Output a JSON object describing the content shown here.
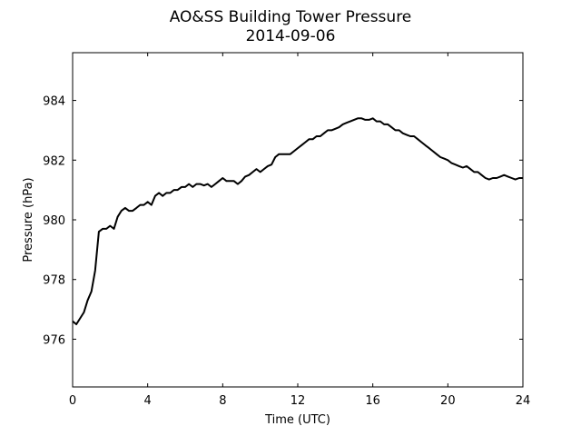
{
  "chart_data": {
    "type": "line",
    "title": "AO&SS Building Tower Pressure",
    "subtitle": "2014-09-06",
    "xlabel": "Time (UTC)",
    "ylabel": "Pressure (hPa)",
    "xlim": [
      0,
      24
    ],
    "ylim": [
      974.4,
      985.6
    ],
    "xticks": [
      0,
      4,
      8,
      12,
      16,
      20,
      24
    ],
    "yticks": [
      976,
      978,
      980,
      982,
      984
    ],
    "grid": false,
    "legend": "none",
    "line_color": "#000000",
    "series": [
      {
        "x": [
          0.0,
          0.2,
          0.4,
          0.6,
          0.8,
          1.0,
          1.2,
          1.4,
          1.6,
          1.8,
          2.0,
          2.2,
          2.4,
          2.6,
          2.8,
          3.0,
          3.2,
          3.4,
          3.6,
          3.8,
          4.0,
          4.2,
          4.4,
          4.6,
          4.8,
          5.0,
          5.2,
          5.4,
          5.6,
          5.8,
          6.0,
          6.2,
          6.4,
          6.6,
          6.8,
          7.0,
          7.2,
          7.4,
          7.6,
          7.8,
          8.0,
          8.2,
          8.4,
          8.6,
          8.8,
          9.0,
          9.2,
          9.4,
          9.6,
          9.8,
          10.0,
          10.2,
          10.4,
          10.6,
          10.8,
          11.0,
          11.2,
          11.4,
          11.6,
          11.8,
          12.0,
          12.2,
          12.4,
          12.6,
          12.8,
          13.0,
          13.2,
          13.4,
          13.6,
          13.8,
          14.0,
          14.2,
          14.4,
          14.6,
          14.8,
          15.0,
          15.2,
          15.4,
          15.6,
          15.8,
          16.0,
          16.2,
          16.4,
          16.6,
          16.8,
          17.0,
          17.2,
          17.4,
          17.6,
          17.8,
          18.0,
          18.2,
          18.4,
          18.6,
          18.8,
          19.0,
          19.2,
          19.4,
          19.6,
          19.8,
          20.0,
          20.2,
          20.4,
          20.6,
          20.8,
          21.0,
          21.2,
          21.4,
          21.6,
          21.8,
          22.0,
          22.2,
          22.4,
          22.6,
          22.8,
          23.0,
          23.2,
          23.4,
          23.6,
          23.8,
          24.0
        ],
        "values": [
          976.6,
          976.5,
          976.7,
          976.9,
          977.3,
          977.6,
          978.3,
          979.6,
          979.7,
          979.7,
          979.8,
          979.7,
          980.1,
          980.3,
          980.4,
          980.3,
          980.3,
          980.4,
          980.5,
          980.5,
          980.6,
          980.5,
          980.8,
          980.9,
          980.8,
          980.9,
          980.9,
          981.0,
          981.0,
          981.1,
          981.1,
          981.2,
          981.1,
          981.2,
          981.2,
          981.15,
          981.2,
          981.1,
          981.2,
          981.3,
          981.4,
          981.3,
          981.3,
          981.3,
          981.2,
          981.3,
          981.45,
          981.5,
          981.6,
          981.7,
          981.6,
          981.7,
          981.8,
          981.85,
          982.1,
          982.2,
          982.2,
          982.2,
          982.2,
          982.3,
          982.4,
          982.5,
          982.6,
          982.7,
          982.7,
          982.8,
          982.8,
          982.9,
          983.0,
          983.0,
          983.05,
          983.1,
          983.2,
          983.25,
          983.3,
          983.35,
          983.4,
          983.4,
          983.35,
          983.35,
          983.4,
          983.3,
          983.3,
          983.2,
          983.2,
          983.1,
          983.0,
          983.0,
          982.9,
          982.85,
          982.8,
          982.8,
          982.7,
          982.6,
          982.5,
          982.4,
          982.3,
          982.2,
          982.1,
          982.05,
          982.0,
          981.9,
          981.85,
          981.8,
          981.75,
          981.8,
          981.7,
          981.6,
          981.6,
          981.5,
          981.4,
          981.35,
          981.4,
          981.4,
          981.45,
          981.5,
          981.45,
          981.4,
          981.35,
          981.4,
          981.4
        ]
      }
    ]
  }
}
